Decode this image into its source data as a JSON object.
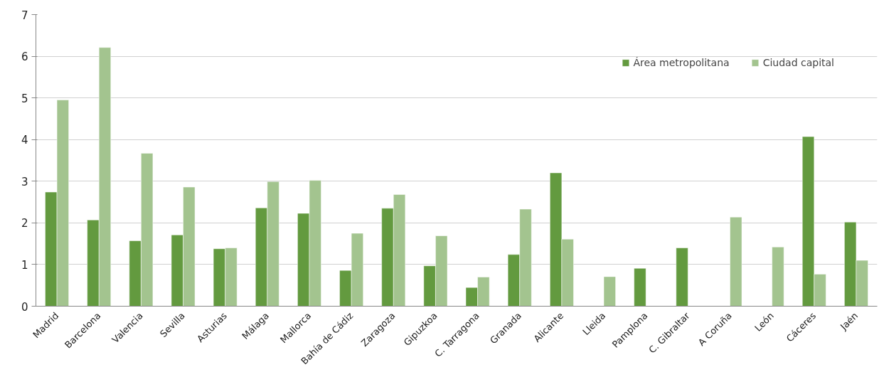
{
  "chart_data": {
    "type": "bar",
    "categories": [
      "Madrid",
      "Barcelona",
      "Valencia",
      "Sevilla",
      "Asturias",
      "Málaga",
      "Mallorca",
      "Bahía de Cádiz",
      "Zaragoza",
      "Gipuzkoa",
      "C. Tarragona",
      "Granada",
      "Alicante",
      "Lleida",
      "Pamplona",
      "C. Gibraltar",
      "A Coruña",
      "León",
      "Cáceres",
      "Jaén"
    ],
    "series": [
      {
        "name": "Área metropolitana",
        "color": "#639a3f",
        "values": [
          2.74,
          2.07,
          1.57,
          1.71,
          1.38,
          2.36,
          2.23,
          0.86,
          2.35,
          0.97,
          0.45,
          1.24,
          3.2,
          null,
          0.91,
          1.4,
          null,
          null,
          4.07,
          2.02
        ]
      },
      {
        "name": "Ciudad capital",
        "color": "#a3c48f",
        "values": [
          4.95,
          6.21,
          3.67,
          2.86,
          1.4,
          2.99,
          3.02,
          1.75,
          2.68,
          1.69,
          0.7,
          2.33,
          1.61,
          0.71,
          null,
          null,
          2.14,
          1.42,
          0.77,
          1.1
        ]
      }
    ],
    "ylim": [
      0,
      7
    ],
    "yticks": [
      0,
      1,
      2,
      3,
      4,
      5,
      6,
      7
    ],
    "grid": "y",
    "legend": "top right"
  }
}
